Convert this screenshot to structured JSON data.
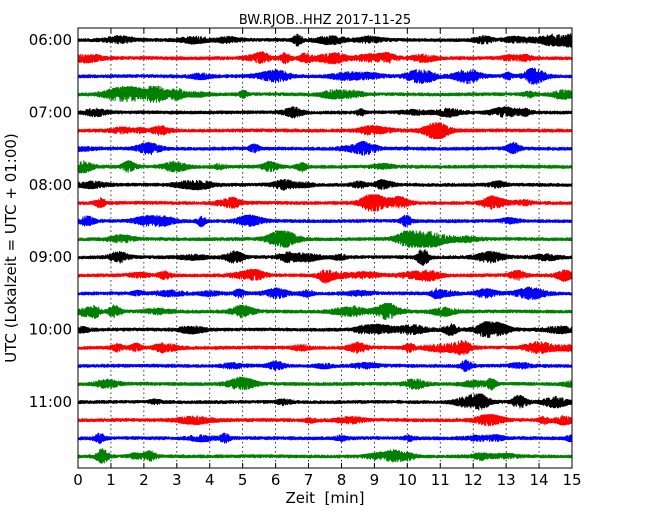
{
  "chart_data": {
    "type": "line",
    "title": "BW.RJOB..HHZ 2017-11-25",
    "xlabel": "Zeit  [min]",
    "ylabel": "UTC (Lokalzeit = UTC + 01:00)",
    "xlim": [
      0,
      15
    ],
    "x_ticks": [
      0,
      1,
      2,
      3,
      4,
      5,
      6,
      7,
      8,
      9,
      10,
      11,
      12,
      13,
      14,
      15
    ],
    "x_tick_labels": [
      "0",
      "1",
      "2",
      "3",
      "4",
      "5",
      "6",
      "7",
      "8",
      "9",
      "10",
      "11",
      "12",
      "13",
      "14",
      "15"
    ],
    "y_tick_labels": [
      "06:00",
      "07:00",
      "08:00",
      "09:00",
      "10:00",
      "11:00"
    ],
    "row_minutes": 15,
    "vertical_grid": "dotted",
    "line_colors": [
      "#000000",
      "#ff0000",
      "#0000ff",
      "#008000"
    ],
    "traces": [
      {
        "start": "06:00"
      },
      {
        "start": "06:15"
      },
      {
        "start": "06:30"
      },
      {
        "start": "06:45"
      },
      {
        "start": "07:00"
      },
      {
        "start": "07:15"
      },
      {
        "start": "07:30"
      },
      {
        "start": "07:45"
      },
      {
        "start": "08:00"
      },
      {
        "start": "08:15"
      },
      {
        "start": "08:30"
      },
      {
        "start": "08:45"
      },
      {
        "start": "09:00"
      },
      {
        "start": "09:15"
      },
      {
        "start": "09:30"
      },
      {
        "start": "09:45"
      },
      {
        "start": "10:00"
      },
      {
        "start": "10:15"
      },
      {
        "start": "10:30"
      },
      {
        "start": "10:45"
      },
      {
        "start": "11:00"
      },
      {
        "start": "11:15"
      },
      {
        "start": "11:30"
      },
      {
        "start": "11:45"
      }
    ]
  }
}
